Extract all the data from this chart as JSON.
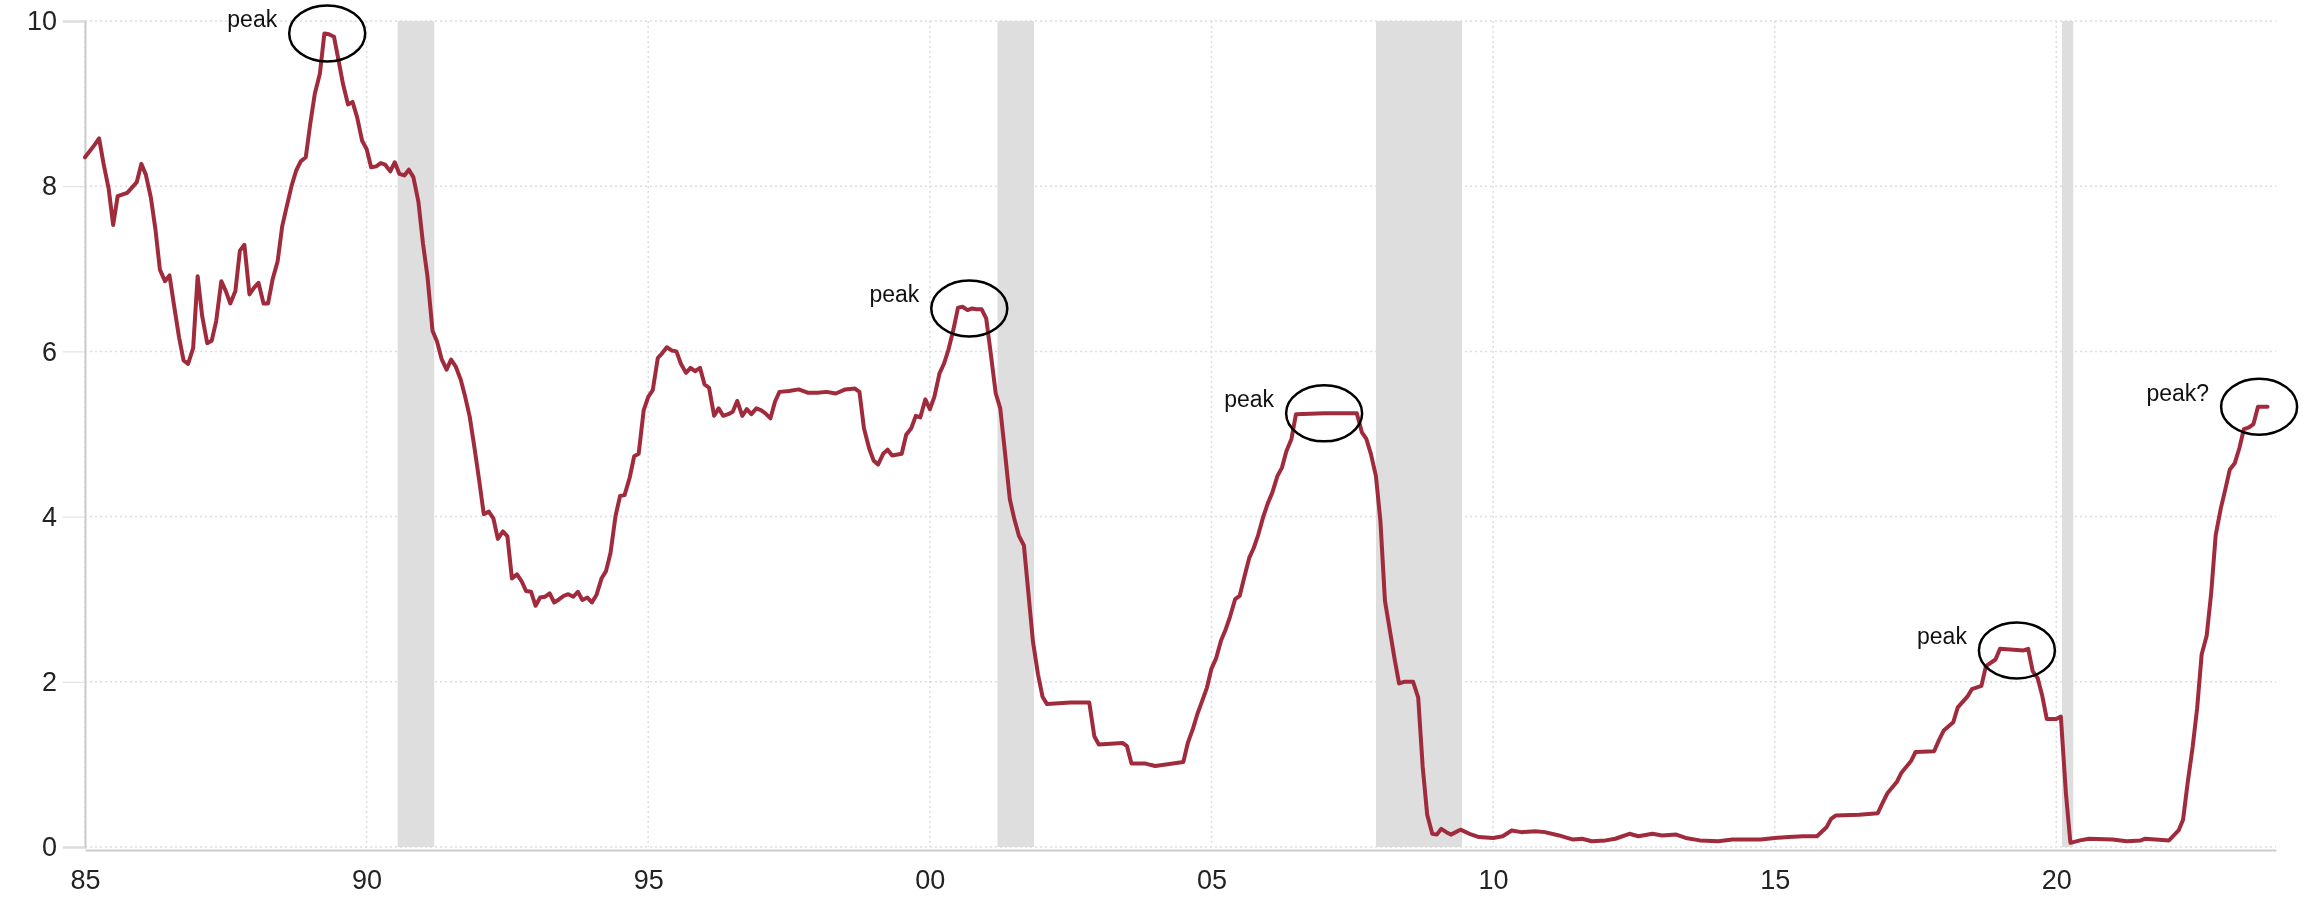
{
  "chart_data": {
    "type": "line",
    "x": [
      1985.0,
      1985.17,
      1985.25,
      1985.33,
      1985.42,
      1985.5,
      1985.58,
      1985.75,
      1985.92,
      1986.0,
      1986.08,
      1986.17,
      1986.25,
      1986.33,
      1986.42,
      1986.5,
      1986.58,
      1986.67,
      1986.75,
      1986.83,
      1986.92,
      1987.0,
      1987.08,
      1987.17,
      1987.25,
      1987.33,
      1987.42,
      1987.5,
      1987.58,
      1987.67,
      1987.75,
      1987.83,
      1987.92,
      1988.0,
      1988.08,
      1988.17,
      1988.25,
      1988.33,
      1988.42,
      1988.5,
      1988.58,
      1988.67,
      1988.75,
      1988.83,
      1988.92,
      1989.0,
      1989.08,
      1989.17,
      1989.25,
      1989.33,
      1989.42,
      1989.5,
      1989.58,
      1989.67,
      1989.75,
      1989.83,
      1989.92,
      1990.0,
      1990.08,
      1990.17,
      1990.25,
      1990.33,
      1990.42,
      1990.5,
      1990.58,
      1990.67,
      1990.75,
      1990.83,
      1990.92,
      1991.0,
      1991.08,
      1991.17,
      1991.25,
      1991.33,
      1991.42,
      1991.5,
      1991.58,
      1991.67,
      1991.75,
      1991.83,
      1991.92,
      1992.0,
      1992.08,
      1992.17,
      1992.25,
      1992.33,
      1992.42,
      1992.5,
      1992.58,
      1992.67,
      1992.75,
      1992.83,
      1992.92,
      1993.0,
      1993.08,
      1993.17,
      1993.25,
      1993.33,
      1993.42,
      1993.5,
      1993.58,
      1993.67,
      1993.75,
      1993.83,
      1993.92,
      1994.0,
      1994.08,
      1994.17,
      1994.25,
      1994.33,
      1994.42,
      1994.5,
      1994.58,
      1994.67,
      1994.75,
      1994.83,
      1994.92,
      1995.0,
      1995.08,
      1995.17,
      1995.25,
      1995.33,
      1995.42,
      1995.5,
      1995.58,
      1995.67,
      1995.75,
      1995.83,
      1995.92,
      1996.0,
      1996.08,
      1996.17,
      1996.25,
      1996.33,
      1996.42,
      1996.5,
      1996.58,
      1996.67,
      1996.75,
      1996.83,
      1996.92,
      1997.0,
      1997.08,
      1997.17,
      1997.25,
      1997.33,
      1997.5,
      1997.67,
      1997.83,
      1998.0,
      1998.17,
      1998.33,
      1998.5,
      1998.67,
      1998.75,
      1998.83,
      1998.92,
      1999.0,
      1999.08,
      1999.17,
      1999.25,
      1999.33,
      1999.5,
      1999.58,
      1999.67,
      1999.75,
      1999.83,
      1999.92,
      2000.0,
      2000.08,
      2000.17,
      2000.25,
      2000.33,
      2000.42,
      2000.5,
      2000.58,
      2000.67,
      2000.75,
      2000.83,
      2000.92,
      2001.0,
      2001.08,
      2001.17,
      2001.25,
      2001.33,
      2001.42,
      2001.5,
      2001.58,
      2001.67,
      2001.75,
      2001.83,
      2001.92,
      2002.0,
      2002.08,
      2002.5,
      2002.83,
      2002.92,
      2003.0,
      2003.42,
      2003.5,
      2003.58,
      2003.83,
      2004.0,
      2004.5,
      2004.58,
      2004.67,
      2004.75,
      2004.83,
      2004.92,
      2005.0,
      2005.08,
      2005.17,
      2005.25,
      2005.33,
      2005.42,
      2005.5,
      2005.58,
      2005.67,
      2005.75,
      2005.83,
      2005.92,
      2006.0,
      2006.08,
      2006.17,
      2006.25,
      2006.33,
      2006.42,
      2006.5,
      2007.0,
      2007.58,
      2007.67,
      2007.75,
      2007.83,
      2007.92,
      2008.0,
      2008.08,
      2008.17,
      2008.25,
      2008.33,
      2008.42,
      2008.58,
      2008.67,
      2008.75,
      2008.83,
      2008.92,
      2009.0,
      2009.08,
      2009.17,
      2009.25,
      2009.42,
      2009.58,
      2009.75,
      2010.0,
      2010.17,
      2010.33,
      2010.5,
      2010.75,
      2010.92,
      2011.17,
      2011.42,
      2011.58,
      2011.75,
      2012.0,
      2012.17,
      2012.42,
      2012.58,
      2012.83,
      2013.0,
      2013.25,
      2013.42,
      2013.67,
      2014.0,
      2014.25,
      2014.5,
      2014.75,
      2015.0,
      2015.25,
      2015.5,
      2015.75,
      2015.92,
      2016.0,
      2016.08,
      2016.5,
      2016.83,
      2016.92,
      2017.0,
      2017.17,
      2017.25,
      2017.42,
      2017.5,
      2017.83,
      2017.92,
      2018.0,
      2018.17,
      2018.25,
      2018.42,
      2018.5,
      2018.67,
      2018.75,
      2018.92,
      2019.0,
      2019.42,
      2019.5,
      2019.58,
      2019.67,
      2019.75,
      2019.83,
      2020.0,
      2020.08,
      2020.17,
      2020.25,
      2020.42,
      2020.58,
      2021.0,
      2021.25,
      2021.5,
      2021.58,
      2022.0,
      2022.17,
      2022.25,
      2022.33,
      2022.42,
      2022.5,
      2022.58,
      2022.67,
      2022.75,
      2022.83,
      2022.92,
      2023.0,
      2023.08,
      2023.17,
      2023.25,
      2023.33,
      2023.42,
      2023.5,
      2023.58,
      2023.75
    ],
    "series": [
      {
        "color": "#a02b3c",
        "values": [
          8.35,
          8.5,
          8.58,
          8.27,
          7.97,
          7.53,
          7.88,
          7.92,
          8.05,
          8.27,
          8.14,
          7.86,
          7.48,
          6.99,
          6.85,
          6.92,
          6.56,
          6.17,
          5.89,
          5.85,
          6.04,
          6.91,
          6.43,
          6.1,
          6.13,
          6.37,
          6.85,
          6.73,
          6.58,
          6.73,
          7.22,
          7.29,
          6.69,
          6.77,
          6.83,
          6.58,
          6.58,
          6.87,
          7.09,
          7.51,
          7.75,
          8.01,
          8.19,
          8.3,
          8.35,
          8.76,
          9.12,
          9.36,
          9.85,
          9.84,
          9.81,
          9.53,
          9.24,
          8.99,
          9.02,
          8.84,
          8.55,
          8.45,
          8.23,
          8.24,
          8.28,
          8.26,
          8.18,
          8.29,
          8.15,
          8.13,
          8.2,
          8.11,
          7.81,
          7.31,
          6.91,
          6.25,
          6.12,
          5.91,
          5.78,
          5.9,
          5.82,
          5.66,
          5.45,
          5.21,
          4.81,
          4.43,
          4.03,
          4.06,
          3.98,
          3.73,
          3.82,
          3.76,
          3.25,
          3.3,
          3.22,
          3.1,
          3.09,
          2.92,
          3.02,
          3.03,
          3.07,
          2.96,
          3.0,
          3.04,
          3.06,
          3.03,
          3.09,
          2.99,
          3.02,
          2.96,
          3.05,
          3.25,
          3.34,
          3.56,
          4.01,
          4.25,
          4.26,
          4.47,
          4.73,
          4.76,
          5.29,
          5.45,
          5.53,
          5.92,
          5.98,
          6.05,
          6.01,
          6.0,
          5.85,
          5.74,
          5.8,
          5.76,
          5.8,
          5.6,
          5.56,
          5.22,
          5.31,
          5.22,
          5.24,
          5.27,
          5.4,
          5.22,
          5.3,
          5.24,
          5.31,
          5.29,
          5.25,
          5.19,
          5.39,
          5.51,
          5.52,
          5.54,
          5.5,
          5.5,
          5.51,
          5.49,
          5.54,
          5.55,
          5.51,
          5.07,
          4.83,
          4.68,
          4.63,
          4.76,
          4.81,
          4.74,
          4.76,
          4.99,
          5.07,
          5.22,
          5.2,
          5.42,
          5.3,
          5.45,
          5.73,
          5.85,
          6.02,
          6.27,
          6.53,
          6.54,
          6.5,
          6.52,
          6.51,
          6.51,
          6.4,
          5.98,
          5.49,
          5.31,
          4.8,
          4.21,
          3.97,
          3.77,
          3.65,
          3.07,
          2.49,
          2.09,
          1.82,
          1.73,
          1.75,
          1.75,
          1.34,
          1.24,
          1.26,
          1.22,
          1.01,
          1.01,
          0.98,
          1.03,
          1.26,
          1.43,
          1.61,
          1.76,
          1.93,
          2.16,
          2.28,
          2.5,
          2.63,
          2.79,
          3.0,
          3.04,
          3.26,
          3.5,
          3.62,
          3.78,
          4.0,
          4.16,
          4.29,
          4.49,
          4.59,
          4.79,
          4.94,
          5.24,
          5.25,
          5.25,
          5.02,
          4.94,
          4.76,
          4.49,
          3.94,
          2.98,
          2.61,
          2.28,
          1.98,
          2.0,
          2.0,
          1.81,
          0.97,
          0.39,
          0.16,
          0.15,
          0.22,
          0.18,
          0.15,
          0.21,
          0.16,
          0.12,
          0.11,
          0.13,
          0.2,
          0.18,
          0.19,
          0.18,
          0.14,
          0.09,
          0.1,
          0.07,
          0.08,
          0.1,
          0.16,
          0.13,
          0.16,
          0.14,
          0.15,
          0.11,
          0.08,
          0.07,
          0.09,
          0.09,
          0.09,
          0.11,
          0.12,
          0.13,
          0.13,
          0.24,
          0.34,
          0.38,
          0.39,
          0.41,
          0.54,
          0.65,
          0.79,
          0.9,
          1.04,
          1.15,
          1.16,
          1.3,
          1.41,
          1.51,
          1.69,
          1.82,
          1.91,
          1.95,
          2.19,
          2.27,
          2.4,
          2.38,
          2.4,
          2.13,
          2.04,
          1.83,
          1.55,
          1.55,
          1.58,
          0.65,
          0.05,
          0.08,
          0.1,
          0.09,
          0.07,
          0.08,
          0.1,
          0.08,
          0.2,
          0.33,
          0.77,
          1.21,
          1.68,
          2.33,
          2.56,
          3.08,
          3.78,
          4.1,
          4.33,
          4.57,
          4.65,
          4.83,
          5.06,
          5.08,
          5.12,
          5.33,
          5.33
        ]
      }
    ],
    "xlim": [
      1985,
      2023.9
    ],
    "xticks": [
      {
        "value": 1985,
        "label": "85"
      },
      {
        "value": 1990,
        "label": "90"
      },
      {
        "value": 1995,
        "label": "95"
      },
      {
        "value": 2000,
        "label": "00"
      },
      {
        "value": 2005,
        "label": "05"
      },
      {
        "value": 2010,
        "label": "10"
      },
      {
        "value": 2015,
        "label": "15"
      },
      {
        "value": 2020,
        "label": "20"
      }
    ],
    "ylim": [
      0,
      10
    ],
    "yticks": [
      0,
      2,
      4,
      6,
      8,
      10
    ],
    "grid": true,
    "bands": [
      {
        "axis": "x",
        "from": 1990.55,
        "to": 1991.2,
        "color": "#dedede"
      },
      {
        "axis": "x",
        "from": 2001.2,
        "to": 2001.85,
        "color": "#dedede"
      },
      {
        "axis": "x",
        "from": 2007.92,
        "to": 2009.45,
        "color": "#dedede"
      },
      {
        "axis": "x",
        "from": 2020.1,
        "to": 2020.3,
        "color": "#dedede"
      }
    ],
    "annotations": [
      {
        "text": "peak",
        "x": 1989.3,
        "y": 9.85
      },
      {
        "text": "peak",
        "x": 2000.7,
        "y": 6.52
      },
      {
        "text": "peak",
        "x": 2007.0,
        "y": 5.25
      },
      {
        "text": "peak",
        "x": 2019.3,
        "y": 2.38
      },
      {
        "text": "peak?",
        "x": 2023.6,
        "y": 5.33
      }
    ]
  }
}
